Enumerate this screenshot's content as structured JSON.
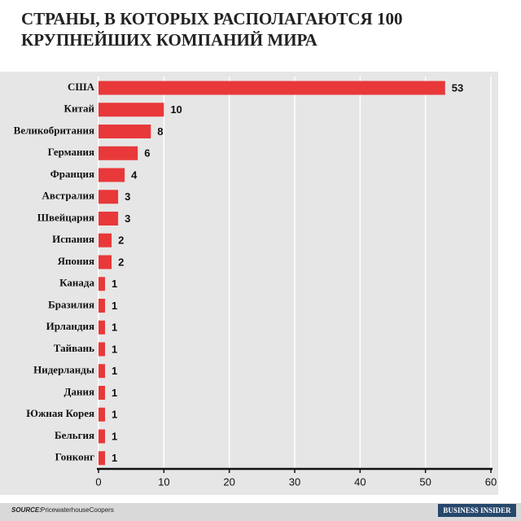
{
  "chart_data": {
    "type": "bar",
    "orientation": "horizontal",
    "title": "СТРАНЫ, В КОТОРЫХ РАСПОЛАГАЮТСЯ 100 КРУПНЕЙШИХ КОМПАНИЙ МИРА",
    "categories": [
      "США",
      "Китай",
      "Великобритания",
      "Германия",
      "Франция",
      "Австралия",
      "Швейцария",
      "Испания",
      "Япония",
      "Канада",
      "Бразилия",
      "Ирландия",
      "Тайвань",
      "Нидерланды",
      "Дания",
      "Южная Корея",
      "Бельгия",
      "Гонконг"
    ],
    "values": [
      53,
      10,
      8,
      6,
      4,
      3,
      3,
      2,
      2,
      1,
      1,
      1,
      1,
      1,
      1,
      1,
      1,
      1
    ],
    "color": "#e8383a",
    "xlim": [
      0,
      60
    ],
    "xticks": [
      0,
      10,
      20,
      30,
      40,
      50,
      60
    ],
    "grid": true,
    "source_label": "SOURCE:",
    "source": "PricewaterhouseCoopers",
    "brand": "BUSINESS INSIDER"
  }
}
